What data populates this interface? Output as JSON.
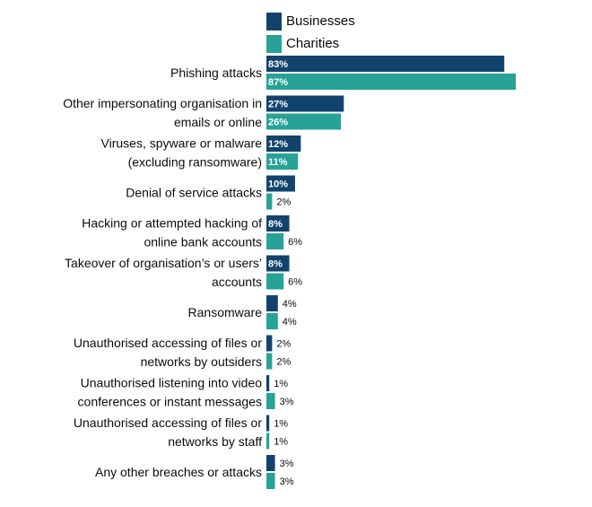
{
  "colors": {
    "businesses": "#12436d",
    "charities": "#28a197"
  },
  "chart_data": {
    "type": "bar",
    "orientation": "horizontal",
    "legend_position": "top",
    "categories": [
      [
        "Phishing attacks"
      ],
      [
        "Other impersonating organisation in",
        "emails or online"
      ],
      [
        "Viruses, spyware or malware",
        "(excluding ransomware)"
      ],
      [
        "Denial of service attacks"
      ],
      [
        "Hacking or attempted hacking of",
        "online bank accounts"
      ],
      [
        "Takeover of organisation’s or users’",
        "accounts"
      ],
      [
        "Ransomware"
      ],
      [
        "Unauthorised accessing of files or",
        "networks by outsiders"
      ],
      [
        "Unauthorised listening into video",
        "conferences or instant messages"
      ],
      [
        "Unauthorised accessing of files or",
        "networks by staff"
      ],
      [
        "Any other breaches or attacks"
      ]
    ],
    "series": [
      {
        "name": "Businesses",
        "values": [
          83,
          27,
          12,
          10,
          8,
          8,
          4,
          2,
          1,
          1,
          3
        ]
      },
      {
        "name": "Charities",
        "values": [
          87,
          26,
          11,
          2,
          6,
          6,
          4,
          2,
          3,
          1,
          3
        ]
      }
    ],
    "value_suffix": "%",
    "xlim": [
      0,
      87
    ],
    "grid": false
  }
}
